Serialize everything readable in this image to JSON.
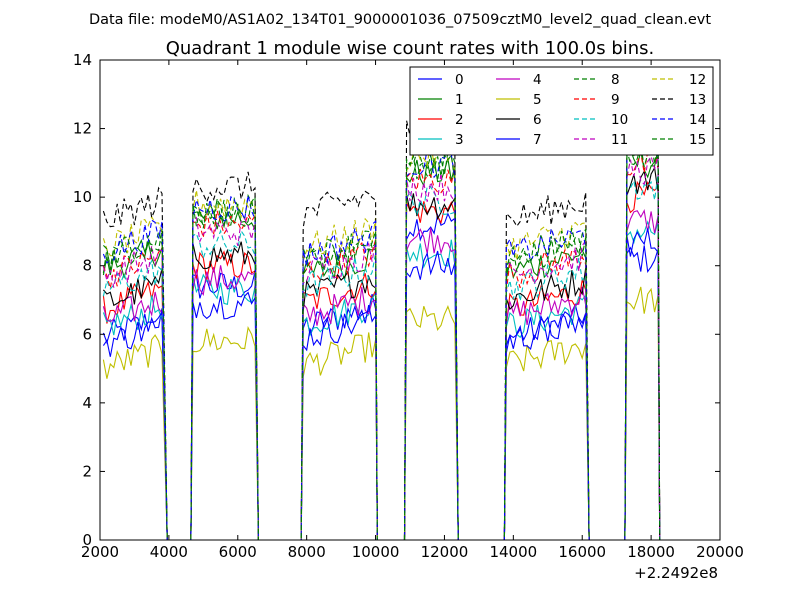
{
  "chart_data": {
    "type": "line",
    "suptitle": "Data file: modeM0/AS1A02_134T01_9000001036_07509cztM0_level2_quad_clean.evt",
    "title": "Quadrant 1 module wise count rates with 100.0s bins.",
    "xlabel": "",
    "ylabel": "",
    "xlim": [
      2000,
      20000
    ],
    "ylim": [
      0,
      14
    ],
    "xticks": [
      2000,
      4000,
      6000,
      8000,
      10000,
      12000,
      14000,
      16000,
      18000,
      20000
    ],
    "yticks": [
      0,
      2,
      4,
      6,
      8,
      10,
      12,
      14
    ],
    "x_offset_label": "+2.2492e8",
    "legend_position": "top-right",
    "legend_columns": 4,
    "segments": [
      {
        "start": 2100,
        "end": 3800,
        "drop_to": 3950
      },
      {
        "start": 4700,
        "end": 6500,
        "drop_to": 6600
      },
      {
        "start": 7900,
        "end": 10000,
        "drop_to": 10050
      },
      {
        "start": 10900,
        "end": 12300,
        "drop_to": 12400
      },
      {
        "start": 13800,
        "end": 16100,
        "drop_to": 16200
      },
      {
        "start": 17300,
        "end": 18200,
        "drop_to": 18250
      }
    ],
    "series": [
      {
        "name": "0",
        "color": "#0000ff",
        "dash": "solid",
        "levels": [
          6.2,
          7.4,
          6.5,
          9.2,
          6.2,
          8.2
        ]
      },
      {
        "name": "1",
        "color": "#008000",
        "dash": "solid",
        "levels": [
          8.2,
          9.4,
          8.0,
          10.7,
          8.1,
          11.0
        ]
      },
      {
        "name": "2",
        "color": "#ff0000",
        "dash": "solid",
        "levels": [
          7.0,
          8.0,
          7.2,
          9.6,
          7.0,
          10.0
        ]
      },
      {
        "name": "3",
        "color": "#00bfbf",
        "dash": "solid",
        "levels": [
          6.5,
          7.3,
          6.6,
          8.4,
          6.5,
          9.0
        ]
      },
      {
        "name": "4",
        "color": "#bf00bf",
        "dash": "solid",
        "levels": [
          6.7,
          7.6,
          6.8,
          8.8,
          6.8,
          9.3
        ]
      },
      {
        "name": "5",
        "color": "#bfbf00",
        "dash": "solid",
        "levels": [
          5.3,
          5.8,
          5.4,
          6.4,
          5.4,
          7.0
        ]
      },
      {
        "name": "6",
        "color": "#000000",
        "dash": "solid",
        "levels": [
          7.2,
          8.3,
          7.4,
          9.8,
          7.3,
          10.5
        ]
      },
      {
        "name": "7",
        "color": "#0000ff",
        "dash": "solid",
        "levels": [
          6.0,
          6.9,
          6.2,
          8.0,
          6.1,
          8.7
        ]
      },
      {
        "name": "8",
        "color": "#008000",
        "dash": "dashed",
        "levels": [
          8.5,
          9.6,
          8.4,
          10.9,
          8.4,
          11.3
        ]
      },
      {
        "name": "9",
        "color": "#ff0000",
        "dash": "dashed",
        "levels": [
          8.0,
          9.2,
          8.1,
          10.5,
          8.0,
          10.9
        ]
      },
      {
        "name": "10",
        "color": "#00bfbf",
        "dash": "dashed",
        "levels": [
          7.6,
          8.6,
          7.7,
          9.9,
          7.6,
          10.3
        ]
      },
      {
        "name": "11",
        "color": "#bf00bf",
        "dash": "dashed",
        "levels": [
          8.0,
          9.0,
          8.1,
          10.3,
          8.0,
          10.8
        ]
      },
      {
        "name": "12",
        "color": "#bfbf00",
        "dash": "dashed",
        "levels": [
          8.8,
          9.8,
          8.8,
          11.2,
          8.8,
          11.6
        ]
      },
      {
        "name": "13",
        "color": "#000000",
        "dash": "dashed",
        "levels": [
          9.6,
          10.3,
          9.8,
          11.9,
          9.6,
          12.3
        ]
      },
      {
        "name": "14",
        "color": "#0000ff",
        "dash": "dashed",
        "levels": [
          8.7,
          9.7,
          8.6,
          11.0,
          8.6,
          11.6
        ]
      },
      {
        "name": "15",
        "color": "#008000",
        "dash": "dashed",
        "levels": [
          8.5,
          9.5,
          8.5,
          10.8,
          8.5,
          11.3
        ]
      }
    ]
  }
}
